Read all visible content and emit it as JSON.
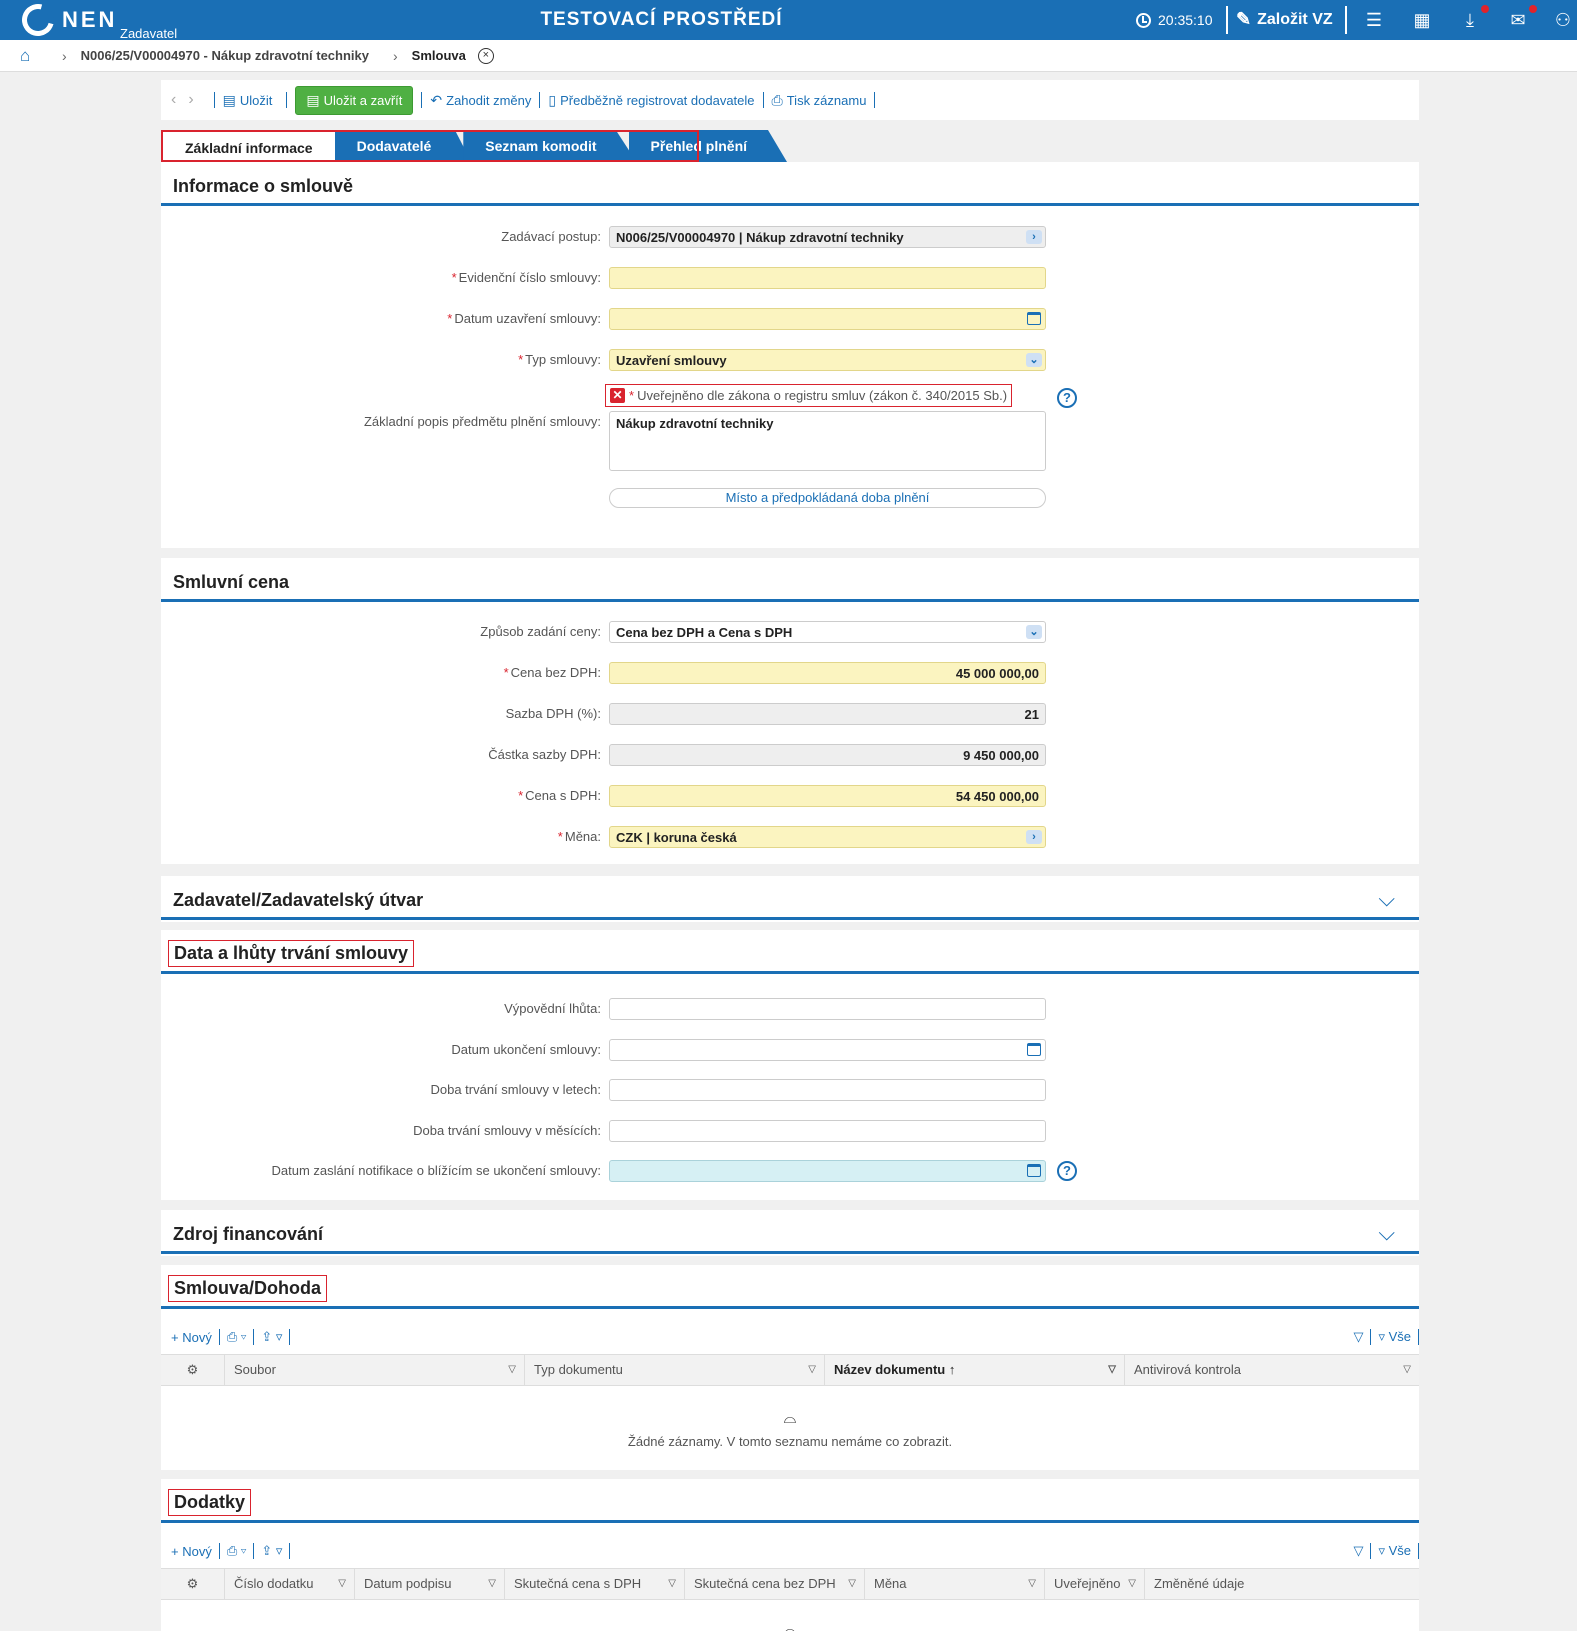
{
  "topbar": {
    "logo": "NEN",
    "logo_sub": "Zadavatel",
    "env_title": "TESTOVACÍ PROSTŘEDÍ",
    "clock": "20:35:10",
    "new_vz": "Založit VZ",
    "icons": [
      "menu-icon",
      "calendar-icon",
      "download-icon",
      "mail-icon",
      "user-icon"
    ]
  },
  "breadcrumb": {
    "item1": "N006/25/V00004970 - Nákup zdravotní techniky",
    "item2": "Smlouva"
  },
  "toolbar": {
    "save": "Uložit",
    "save_close": "Uložit a zavřít",
    "discard": "Zahodit změny",
    "preregister": "Předběžně registrovat dodavatele",
    "print": "Tisk záznamu"
  },
  "tabs": [
    "Základní informace",
    "Dodavatelé",
    "Seznam komodit",
    "Přehled plnění"
  ],
  "info": {
    "title": "Informace o smlouvě",
    "zadavaci_postup_label": "Zadávací postup:",
    "zadavaci_postup_value": "N006/25/V00004970 | Nákup zdravotní techniky",
    "evidencni_label": "Evidenční číslo smlouvy:",
    "evidencni_value": "",
    "datum_uzavreni_label": "Datum uzavření smlouvy:",
    "datum_uzavreni_value": "",
    "typ_label": "Typ smlouvy:",
    "typ_value": "Uzavření smlouvy",
    "uverejneno_label": "Uveřejněno dle zákona o registru smluv (zákon č. 340/2015 Sb.)",
    "popis_label": "Základní popis předmětu plnění smlouvy:",
    "popis_value": "Nákup zdravotní techniky",
    "misto_button": "Místo a předpokládaná doba plnění"
  },
  "cena": {
    "title": "Smluvní cena",
    "zpusob_label": "Způsob zadání ceny:",
    "zpusob_value": "Cena bez DPH a Cena s DPH",
    "bez_dph_label": "Cena bez DPH:",
    "bez_dph_value": "45 000 000,00",
    "sazba_label": "Sazba DPH (%):",
    "sazba_value": "21",
    "castka_label": "Částka sazby DPH:",
    "castka_value": "9 450 000,00",
    "s_dph_label": "Cena s DPH:",
    "s_dph_value": "54 450 000,00",
    "mena_label": "Měna:",
    "mena_value": "CZK | koruna česká"
  },
  "zadavatel": {
    "title": "Zadavatel/Zadavatelský útvar"
  },
  "lhuty": {
    "title": "Data a lhůty trvání smlouvy",
    "vypovedni_label": "Výpovědní lhůta:",
    "ukonceni_label": "Datum ukončení smlouvy:",
    "roky_label": "Doba trvání smlouvy v letech:",
    "mesice_label": "Doba trvání smlouvy v měsících:",
    "notifikace_label": "Datum zaslání notifikace o blížícím se ukončení smlouvy:"
  },
  "zdroj": {
    "title": "Zdroj financování"
  },
  "smlouva": {
    "title": "Smlouva/Dohoda",
    "new": "Nový",
    "all": "Vše",
    "columns": [
      "Soubor",
      "Typ dokumentu",
      "Název dokumentu",
      "Antivirová kontrola"
    ],
    "empty": "Žádné záznamy. V tomto seznamu nemáme co zobrazit."
  },
  "dodatky": {
    "title": "Dodatky",
    "new": "Nový",
    "all": "Vše",
    "columns": [
      "Číslo dodatku",
      "Datum podpisu",
      "Skutečná cena s DPH",
      "Skutečná cena bez DPH",
      "Měna",
      "Uveřejněno",
      "Změněné údaje"
    ]
  }
}
